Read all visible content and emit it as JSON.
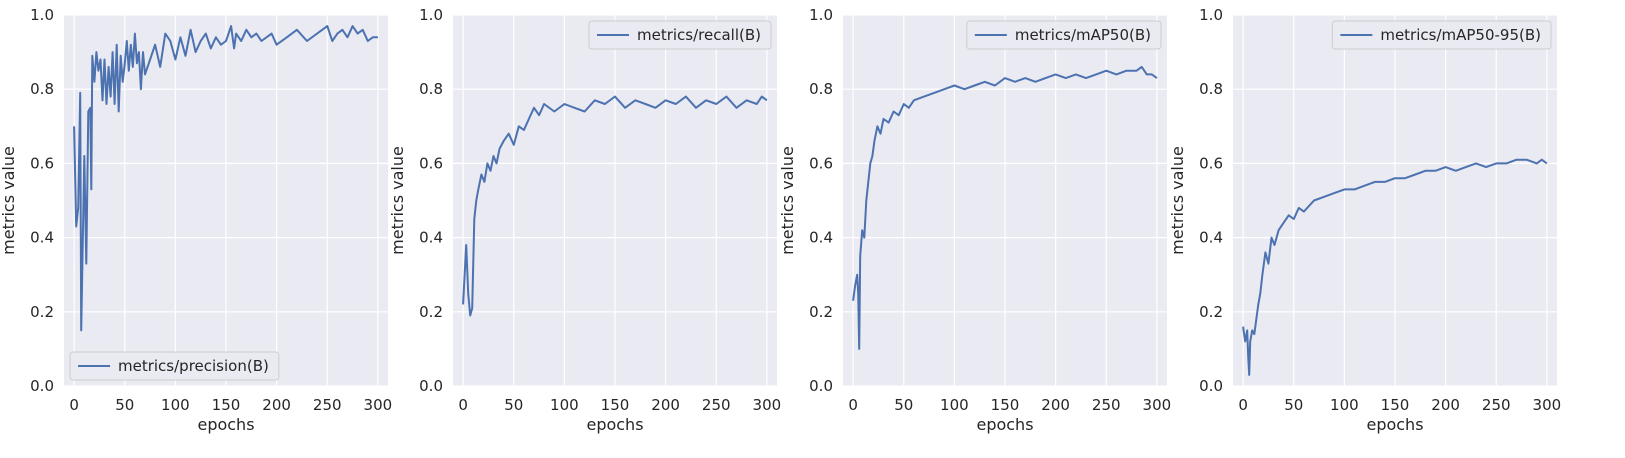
{
  "figure": {
    "background": "#ffffff",
    "plot_background": "#eaeaf2",
    "line_color": "#4c72b0"
  },
  "chart_data": [
    {
      "type": "line",
      "xlabel": "epochs",
      "ylabel": "metrics value",
      "xlim": [
        -10,
        310
      ],
      "ylim": [
        0,
        1
      ],
      "xticks": [
        0,
        50,
        100,
        150,
        200,
        250,
        300
      ],
      "yticks": [
        0.0,
        0.2,
        0.4,
        0.6,
        0.8,
        1.0
      ],
      "grid": true,
      "legend_position": "lower-left",
      "series": [
        {
          "name": "metrics/precision(B)",
          "x": [
            0,
            2,
            4,
            6,
            7,
            8,
            10,
            12,
            14,
            16,
            17,
            18,
            20,
            22,
            24,
            26,
            28,
            30,
            32,
            34,
            36,
            38,
            40,
            42,
            44,
            46,
            48,
            50,
            52,
            54,
            56,
            58,
            60,
            62,
            64,
            66,
            68,
            70,
            75,
            80,
            85,
            90,
            95,
            100,
            105,
            110,
            115,
            120,
            125,
            130,
            135,
            140,
            145,
            150,
            155,
            158,
            160,
            165,
            170,
            175,
            180,
            185,
            190,
            195,
            200,
            210,
            220,
            230,
            240,
            250,
            255,
            260,
            265,
            270,
            275,
            280,
            285,
            290,
            295,
            300
          ],
          "values": [
            0.7,
            0.43,
            0.48,
            0.79,
            0.15,
            0.3,
            0.62,
            0.33,
            0.74,
            0.75,
            0.53,
            0.89,
            0.82,
            0.9,
            0.85,
            0.88,
            0.77,
            0.88,
            0.76,
            0.86,
            0.78,
            0.9,
            0.76,
            0.92,
            0.74,
            0.89,
            0.82,
            0.87,
            0.93,
            0.85,
            0.92,
            0.86,
            0.95,
            0.87,
            0.9,
            0.8,
            0.9,
            0.84,
            0.88,
            0.92,
            0.86,
            0.95,
            0.93,
            0.88,
            0.94,
            0.89,
            0.96,
            0.9,
            0.93,
            0.95,
            0.91,
            0.94,
            0.92,
            0.93,
            0.97,
            0.91,
            0.95,
            0.93,
            0.96,
            0.94,
            0.95,
            0.93,
            0.94,
            0.95,
            0.92,
            0.94,
            0.96,
            0.93,
            0.95,
            0.97,
            0.93,
            0.95,
            0.96,
            0.94,
            0.97,
            0.95,
            0.96,
            0.93,
            0.94,
            0.94
          ]
        }
      ]
    },
    {
      "type": "line",
      "xlabel": "epochs",
      "ylabel": "metrics value",
      "xlim": [
        -10,
        310
      ],
      "ylim": [
        0,
        1
      ],
      "xticks": [
        0,
        50,
        100,
        150,
        200,
        250,
        300
      ],
      "yticks": [
        0.0,
        0.2,
        0.4,
        0.6,
        0.8,
        1.0
      ],
      "grid": true,
      "legend_position": "top-right",
      "series": [
        {
          "name": "metrics/recall(B)",
          "x": [
            0,
            3,
            5,
            7,
            9,
            11,
            13,
            15,
            18,
            21,
            24,
            27,
            30,
            33,
            36,
            40,
            45,
            50,
            55,
            60,
            65,
            70,
            75,
            80,
            90,
            100,
            110,
            120,
            130,
            140,
            150,
            160,
            170,
            180,
            190,
            200,
            210,
            220,
            230,
            240,
            250,
            260,
            270,
            280,
            290,
            295,
            300
          ],
          "values": [
            0.22,
            0.38,
            0.25,
            0.19,
            0.21,
            0.45,
            0.5,
            0.53,
            0.57,
            0.55,
            0.6,
            0.58,
            0.62,
            0.6,
            0.64,
            0.66,
            0.68,
            0.65,
            0.7,
            0.69,
            0.72,
            0.75,
            0.73,
            0.76,
            0.74,
            0.76,
            0.75,
            0.74,
            0.77,
            0.76,
            0.78,
            0.75,
            0.77,
            0.76,
            0.75,
            0.77,
            0.76,
            0.78,
            0.75,
            0.77,
            0.76,
            0.78,
            0.75,
            0.77,
            0.76,
            0.78,
            0.77
          ]
        }
      ]
    },
    {
      "type": "line",
      "xlabel": "epochs",
      "ylabel": "metrics value",
      "xlim": [
        -10,
        310
      ],
      "ylim": [
        0,
        1
      ],
      "xticks": [
        0,
        50,
        100,
        150,
        200,
        250,
        300
      ],
      "yticks": [
        0.0,
        0.2,
        0.4,
        0.6,
        0.8,
        1.0
      ],
      "grid": true,
      "legend_position": "top-right",
      "series": [
        {
          "name": "metrics/mAP50(B)",
          "x": [
            0,
            2,
            4,
            5,
            6,
            7,
            9,
            11,
            13,
            15,
            17,
            19,
            21,
            24,
            27,
            30,
            35,
            40,
            45,
            50,
            55,
            60,
            70,
            80,
            90,
            100,
            110,
            120,
            130,
            140,
            150,
            160,
            170,
            180,
            190,
            200,
            210,
            220,
            230,
            240,
            250,
            260,
            270,
            280,
            285,
            290,
            295,
            300
          ],
          "values": [
            0.23,
            0.27,
            0.3,
            0.25,
            0.1,
            0.35,
            0.42,
            0.4,
            0.5,
            0.55,
            0.6,
            0.62,
            0.66,
            0.7,
            0.68,
            0.72,
            0.71,
            0.74,
            0.73,
            0.76,
            0.75,
            0.77,
            0.78,
            0.79,
            0.8,
            0.81,
            0.8,
            0.81,
            0.82,
            0.81,
            0.83,
            0.82,
            0.83,
            0.82,
            0.83,
            0.84,
            0.83,
            0.84,
            0.83,
            0.84,
            0.85,
            0.84,
            0.85,
            0.85,
            0.86,
            0.84,
            0.84,
            0.83
          ]
        }
      ]
    },
    {
      "type": "line",
      "xlabel": "epochs",
      "ylabel": "metrics value",
      "xlim": [
        -10,
        310
      ],
      "ylim": [
        0,
        1
      ],
      "xticks": [
        0,
        50,
        100,
        150,
        200,
        250,
        300
      ],
      "yticks": [
        0.0,
        0.2,
        0.4,
        0.6,
        0.8,
        1.0
      ],
      "grid": true,
      "legend_position": "top-right",
      "series": [
        {
          "name": "metrics/mAP50-95(B)",
          "x": [
            0,
            2,
            4,
            5,
            6,
            7,
            9,
            11,
            13,
            15,
            17,
            19,
            22,
            25,
            28,
            31,
            35,
            40,
            45,
            50,
            55,
            60,
            70,
            80,
            90,
            100,
            110,
            120,
            130,
            140,
            150,
            160,
            170,
            180,
            190,
            200,
            210,
            220,
            230,
            240,
            250,
            260,
            270,
            280,
            290,
            295,
            300
          ],
          "values": [
            0.16,
            0.12,
            0.15,
            0.08,
            0.03,
            0.12,
            0.15,
            0.14,
            0.18,
            0.22,
            0.25,
            0.3,
            0.36,
            0.33,
            0.4,
            0.38,
            0.42,
            0.44,
            0.46,
            0.45,
            0.48,
            0.47,
            0.5,
            0.51,
            0.52,
            0.53,
            0.53,
            0.54,
            0.55,
            0.55,
            0.56,
            0.56,
            0.57,
            0.58,
            0.58,
            0.59,
            0.58,
            0.59,
            0.6,
            0.59,
            0.6,
            0.6,
            0.61,
            0.61,
            0.6,
            0.61,
            0.6
          ]
        }
      ]
    }
  ]
}
